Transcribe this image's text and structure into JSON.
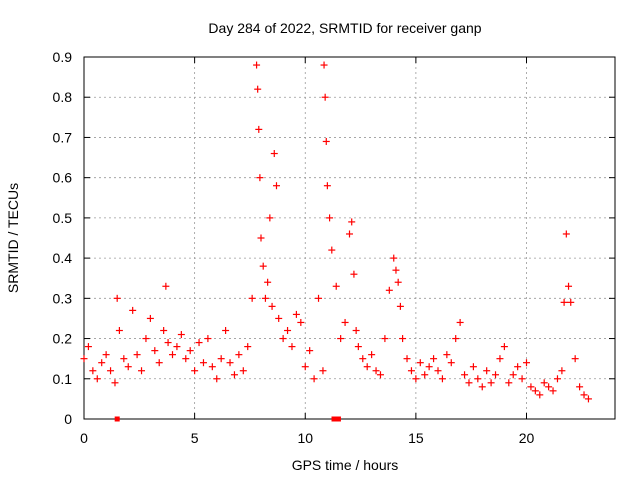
{
  "chart_data": {
    "type": "scatter",
    "title": "Day 284 of 2022, SRMTID for receiver ganp",
    "xlabel": "GPS time / hours",
    "ylabel": "SRMTID / TECUs",
    "xlim": [
      0,
      24
    ],
    "ylim": [
      0,
      0.9
    ],
    "xticks": [
      0,
      5,
      10,
      15,
      20
    ],
    "yticks": [
      0,
      0.1,
      0.2,
      0.3,
      0.4,
      0.5,
      0.6,
      0.7,
      0.8,
      0.9
    ],
    "xtick_labels": [
      "0",
      "5",
      "10",
      "15",
      "20"
    ],
    "ytick_labels": [
      "0",
      "0.1",
      "0.2",
      "0.3",
      "0.4",
      "0.5",
      "0.6",
      "0.7",
      "0.8",
      "0.9"
    ],
    "grid": true,
    "marker": "plus",
    "color": "#ff0000",
    "series": [
      {
        "name": "SRMTID",
        "x": [
          0.0,
          0.2,
          0.4,
          0.6,
          0.8,
          1.0,
          1.2,
          1.4,
          1.5,
          1.6,
          1.8,
          2.0,
          2.2,
          2.4,
          2.6,
          2.8,
          3.0,
          3.2,
          3.4,
          3.6,
          3.7,
          3.8,
          4.0,
          4.2,
          4.4,
          4.6,
          4.8,
          5.0,
          5.2,
          5.4,
          5.6,
          5.8,
          6.0,
          6.2,
          6.4,
          6.6,
          6.8,
          7.0,
          7.2,
          7.4,
          7.6,
          7.8,
          7.85,
          7.9,
          7.95,
          8.0,
          8.1,
          8.2,
          8.3,
          8.4,
          8.5,
          8.6,
          8.7,
          8.8,
          9.0,
          9.2,
          9.4,
          9.6,
          9.8,
          10.0,
          10.2,
          10.4,
          10.6,
          10.8,
          10.85,
          10.9,
          10.95,
          11.0,
          11.1,
          11.2,
          11.4,
          11.6,
          11.8,
          12.0,
          12.1,
          12.2,
          12.3,
          12.4,
          12.6,
          12.8,
          13.0,
          13.2,
          13.4,
          13.6,
          13.8,
          14.0,
          14.1,
          14.2,
          14.3,
          14.4,
          14.6,
          14.8,
          15.0,
          15.2,
          15.4,
          15.6,
          15.8,
          16.0,
          16.2,
          16.4,
          16.6,
          16.8,
          17.0,
          17.2,
          17.4,
          17.6,
          17.8,
          18.0,
          18.2,
          18.4,
          18.6,
          18.8,
          19.0,
          19.2,
          19.4,
          19.6,
          19.8,
          20.0,
          20.2,
          20.4,
          20.6,
          20.8,
          21.0,
          21.2,
          21.4,
          21.6,
          21.7,
          21.8,
          21.9,
          22.0,
          22.2,
          22.4,
          22.6,
          22.8
        ],
        "y": [
          0.15,
          0.18,
          0.12,
          0.1,
          0.14,
          0.16,
          0.12,
          0.09,
          0.3,
          0.22,
          0.15,
          0.13,
          0.27,
          0.16,
          0.12,
          0.2,
          0.25,
          0.17,
          0.14,
          0.22,
          0.33,
          0.19,
          0.16,
          0.18,
          0.21,
          0.15,
          0.17,
          0.12,
          0.19,
          0.14,
          0.2,
          0.13,
          0.1,
          0.15,
          0.22,
          0.14,
          0.11,
          0.16,
          0.12,
          0.18,
          0.3,
          0.88,
          0.82,
          0.72,
          0.6,
          0.45,
          0.38,
          0.3,
          0.34,
          0.5,
          0.28,
          0.66,
          0.58,
          0.25,
          0.2,
          0.22,
          0.18,
          0.26,
          0.24,
          0.13,
          0.17,
          0.1,
          0.3,
          0.12,
          0.88,
          0.8,
          0.69,
          0.58,
          0.5,
          0.42,
          0.33,
          0.2,
          0.24,
          0.46,
          0.49,
          0.36,
          0.22,
          0.18,
          0.15,
          0.13,
          0.16,
          0.12,
          0.11,
          0.2,
          0.32,
          0.4,
          0.37,
          0.34,
          0.28,
          0.2,
          0.15,
          0.12,
          0.1,
          0.14,
          0.11,
          0.13,
          0.15,
          0.12,
          0.1,
          0.16,
          0.14,
          0.2,
          0.24,
          0.11,
          0.09,
          0.13,
          0.1,
          0.08,
          0.12,
          0.09,
          0.11,
          0.15,
          0.18,
          0.09,
          0.11,
          0.13,
          0.1,
          0.14,
          0.08,
          0.07,
          0.06,
          0.09,
          0.08,
          0.07,
          0.1,
          0.12,
          0.29,
          0.46,
          0.33,
          0.29,
          0.15,
          0.08,
          0.06,
          0.05
        ]
      }
    ],
    "zero_markers_x": [
      1.5,
      11.3,
      11.5
    ]
  }
}
